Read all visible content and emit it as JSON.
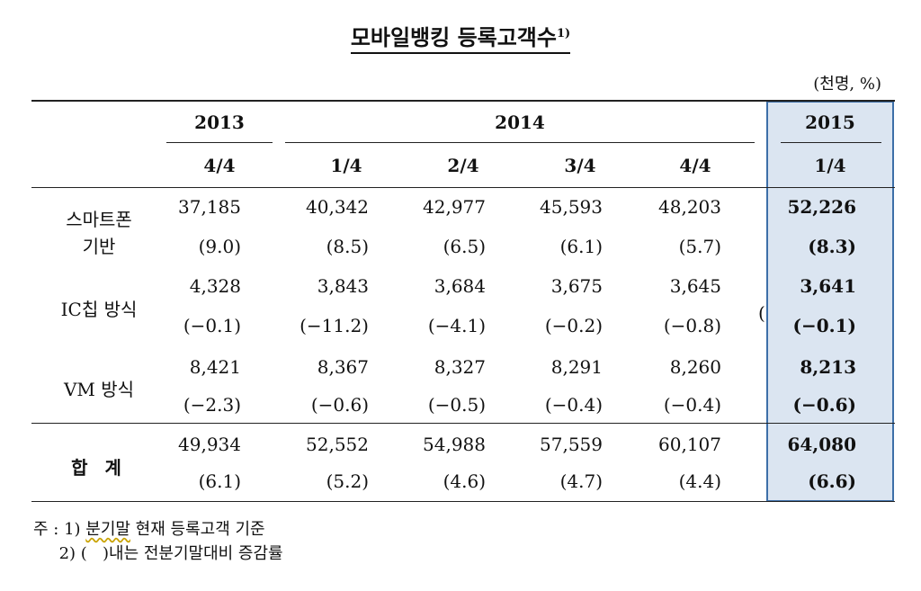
{
  "title": "모바일뱅킹 등록고객수",
  "title_footnote": "1)",
  "unit": "(천명, %)",
  "years": {
    "y2013": "2013",
    "y2014": "2014",
    "y2015": "2015"
  },
  "quarters": [
    "4/4",
    "1/4",
    "2/4",
    "3/4",
    "4/4",
    "1/4"
  ],
  "rows": [
    {
      "label_line1": "스마트폰",
      "label_line2": "기반",
      "values": [
        "37,185",
        "40,342",
        "42,977",
        "45,593",
        "48,203",
        "52,226"
      ],
      "rates": [
        "(9.0)",
        "(8.5)",
        "(6.5)",
        "(6.1)",
        "(5.7)",
        "(8.3)"
      ]
    },
    {
      "label_line1": "IC칩 방식",
      "label_line2": "",
      "values": [
        "4,328",
        "3,843",
        "3,684",
        "3,675",
        "3,645",
        "3,641"
      ],
      "rates": [
        "(−0.1)",
        "(−11.2)",
        "(−4.1)",
        "(−0.2)",
        "(−0.8)",
        "(−0.1)"
      ]
    },
    {
      "label_line1": "VM 방식",
      "label_line2": "",
      "values": [
        "8,421",
        "8,367",
        "8,327",
        "8,291",
        "8,260",
        "8,213"
      ],
      "rates": [
        "(−2.3)",
        "(−0.6)",
        "(−0.5)",
        "(−0.4)",
        "(−0.4)",
        "(−0.6)"
      ]
    },
    {
      "label_line1": "합 계",
      "label_line2": "",
      "values": [
        "49,934",
        "52,552",
        "54,988",
        "57,559",
        "60,107",
        "64,080"
      ],
      "rates": [
        "(6.1)",
        "(5.2)",
        "(4.6)",
        "(4.7)",
        "(4.4)",
        "(6.6)"
      ]
    }
  ],
  "stray_char": "(",
  "notes": {
    "n1_prefix": "주 : 1) ",
    "n1_wavy": "분기말",
    "n1_rest": " 현재 등록고객 기준",
    "n2": "     2) (   )내는 전분기말대비 증감률"
  }
}
